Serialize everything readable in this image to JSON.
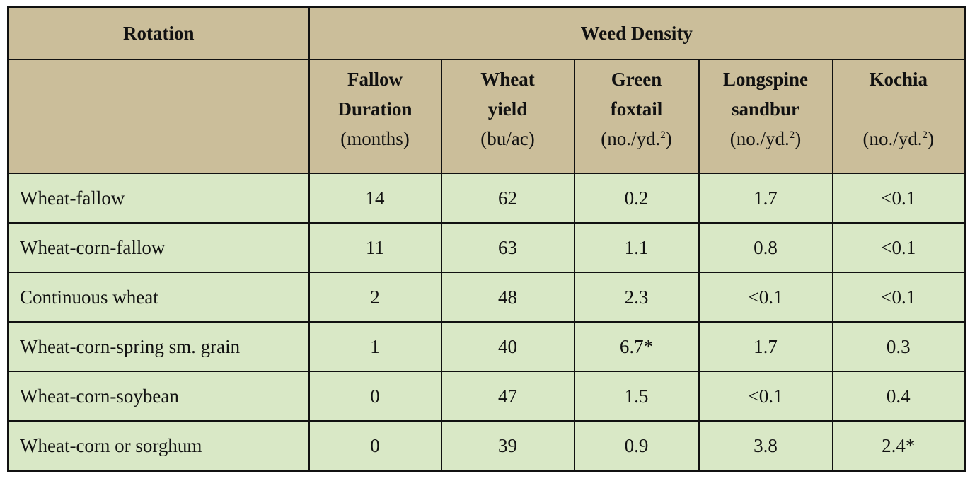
{
  "table": {
    "header": {
      "rotation": "Rotation",
      "weed_density": "Weed Density"
    },
    "columns": [
      {
        "name_line1": "Fallow",
        "name_line2": "Duration",
        "unit": "(months)",
        "has_sup": false
      },
      {
        "name_line1": "Wheat",
        "name_line2": "yield",
        "unit": "(bu/ac)",
        "has_sup": false
      },
      {
        "name_line1": "Green",
        "name_line2": "foxtail",
        "unit": "(no./yd.",
        "unit_sup": "2",
        "unit_end": ")",
        "has_sup": true
      },
      {
        "name_line1": "Longspine",
        "name_line2": "sandbur",
        "unit": "(no./yd.",
        "unit_sup": "2",
        "unit_end": ")",
        "has_sup": true
      },
      {
        "name_line1": "Kochia",
        "name_line2": "",
        "unit": "(no./yd.",
        "unit_sup": "2",
        "unit_end": ")",
        "has_sup": true
      }
    ],
    "rows": [
      {
        "rotation": "Wheat-fallow",
        "fallow": "14",
        "yield": "62",
        "foxtail": "0.2",
        "sandbur": "1.7",
        "kochia": "<0.1"
      },
      {
        "rotation": "Wheat-corn-fallow",
        "fallow": "11",
        "yield": "63",
        "foxtail": "1.1",
        "sandbur": "0.8",
        "kochia": "<0.1"
      },
      {
        "rotation": "Continuous wheat",
        "fallow": "2",
        "yield": "48",
        "foxtail": "2.3",
        "sandbur": "<0.1",
        "kochia": "<0.1"
      },
      {
        "rotation": "Wheat-corn-spring sm. grain",
        "fallow": "1",
        "yield": "40",
        "foxtail": "6.7*",
        "sandbur": "1.7",
        "kochia": "0.3"
      },
      {
        "rotation": "Wheat-corn-soybean",
        "fallow": "0",
        "yield": "47",
        "foxtail": "1.5",
        "sandbur": "<0.1",
        "kochia": "0.4"
      },
      {
        "rotation": "Wheat-corn or sorghum",
        "fallow": "0",
        "yield": "39",
        "foxtail": "0.9",
        "sandbur": "3.8",
        "kochia": "2.4*"
      }
    ]
  },
  "colors": {
    "header_bg": "#cbbe9a",
    "body_bg": "#d9e8c6",
    "border": "#111111"
  }
}
